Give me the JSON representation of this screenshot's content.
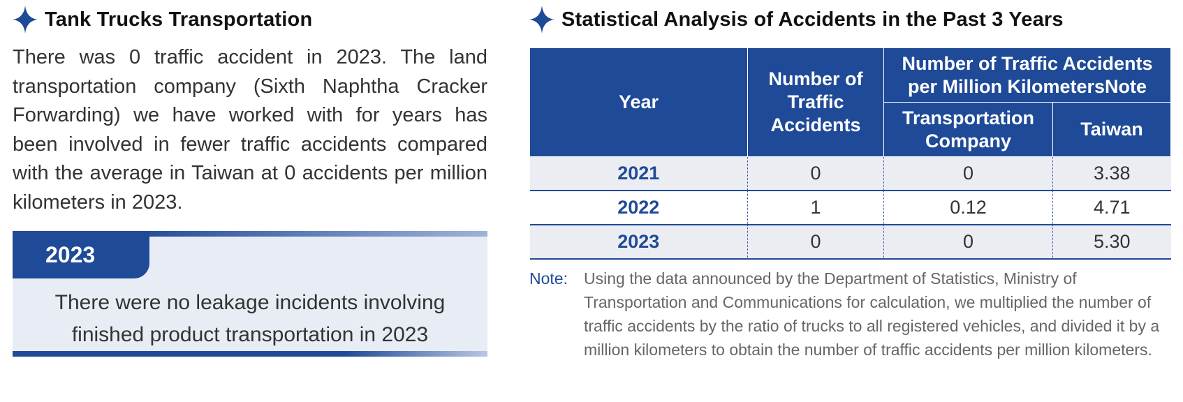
{
  "left": {
    "heading": "Tank Trucks Transportation",
    "paragraph": "There was 0 traffic accident in 2023. The land transportation company (Sixth Naphtha Cracker Forwarding) we have worked with for years has been involved in fewer traffic accidents compared with the average in Taiwan at 0 accidents per million kilometers in 2023.",
    "callout": {
      "year": "2023",
      "message_line1": "There were no leakage incidents involving",
      "message_line2": "finished product transportation in 2023"
    }
  },
  "right": {
    "heading": "Statistical Analysis of Accidents in the Past 3 Years",
    "table": {
      "h_year": "Year",
      "h_count": "Number of Traffic Accidents",
      "h_per_million": "Number of Traffic Accidents per Million KilometersNote",
      "h_company": "Transportation Company",
      "h_taiwan": "Taiwan",
      "rows": [
        {
          "year": "2021",
          "count": "0",
          "company": "0",
          "taiwan": "3.38"
        },
        {
          "year": "2022",
          "count": "1",
          "company": "0.12",
          "taiwan": "4.71"
        },
        {
          "year": "2023",
          "count": "0",
          "company": "0",
          "taiwan": "5.30"
        }
      ]
    },
    "note_label": "Note:",
    "note_text": "Using the data announced by the Department of Statistics, Ministry of Transportation and Communications for calculation, we multiplied the number of traffic accidents by the ratio of trucks to all registered vehicles, and divided it by a million kilometers to obtain the number of traffic accidents per million kilometers."
  },
  "colors": {
    "brand_blue": "#1f4a97",
    "row_shade": "#ecedf3",
    "callout_bg": "#e8ecf4"
  },
  "icons": {
    "heading_marker": "four-point-star-icon"
  }
}
